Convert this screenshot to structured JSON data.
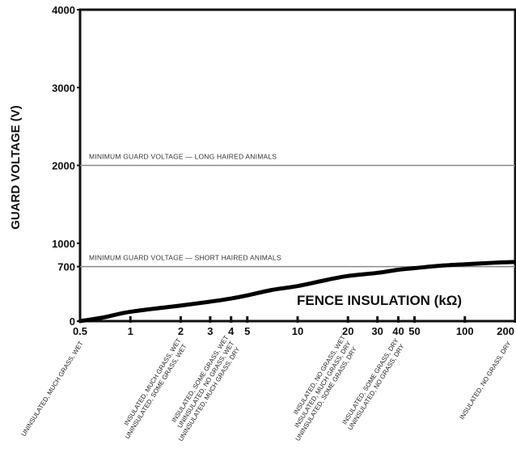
{
  "chart_data": {
    "type": "line",
    "title": "",
    "xlabel": "FENCE INSULATION (kΩ)",
    "ylabel": "GUARD VOLTAGE (V)",
    "x_scale": "log",
    "xlim": [
      0.5,
      200
    ],
    "ylim": [
      0,
      4000
    ],
    "x_ticks": [
      "0.5",
      "1",
      "2",
      "3",
      "4",
      "5",
      "10",
      "20",
      "30",
      "40",
      "50",
      "100",
      "200"
    ],
    "y_ticks": [
      "0",
      "700",
      "1000",
      "2000",
      "3000",
      "4000"
    ],
    "grid": false,
    "series": [
      {
        "x": [
          0.5,
          0.7,
          1,
          2,
          3,
          4,
          5,
          7,
          10,
          15,
          20,
          30,
          40,
          50,
          70,
          100,
          150,
          200
        ],
        "y": [
          0,
          50,
          120,
          200,
          250,
          290,
          330,
          400,
          450,
          530,
          580,
          620,
          660,
          680,
          710,
          730,
          750,
          760
        ]
      }
    ],
    "reference_lines": [
      {
        "y": 2000,
        "label": "MINIMUM GUARD VOLTAGE — LONG HAIRED ANIMALS"
      },
      {
        "y": 700,
        "label": "MINIMUM GUARD VOLTAGE — SHORT HAIRED ANIMALS"
      }
    ],
    "conditions": [
      {
        "x": 0.5,
        "lines": [
          "UNINSULATED, MUCH GRASS, WET"
        ]
      },
      {
        "x": 2,
        "lines": [
          "INSULATED, MUCH GRASS, WET",
          "UNINSULATED, SOME GRASS, WET"
        ]
      },
      {
        "x": 4,
        "lines": [
          "INSULATED, SOME GRASS, WET",
          "UNINSULATED, NO GRASS, WET",
          "UNINSULATED, MUCH GRASS, DRY"
        ]
      },
      {
        "x": 20,
        "lines": [
          "INSULATED, NO GRASS, WET",
          "INSULATED, MUCH GRASS, DRY",
          "UNINSULATED, SOME GRASS, DRY"
        ]
      },
      {
        "x": 40,
        "lines": [
          "INSULATED, SOME GRASS, DRY",
          "UNINSULATED, NO GRASS, DRY"
        ]
      },
      {
        "x": 200,
        "lines": [
          "INSULATED, NO GRASS, DRY"
        ]
      }
    ]
  }
}
